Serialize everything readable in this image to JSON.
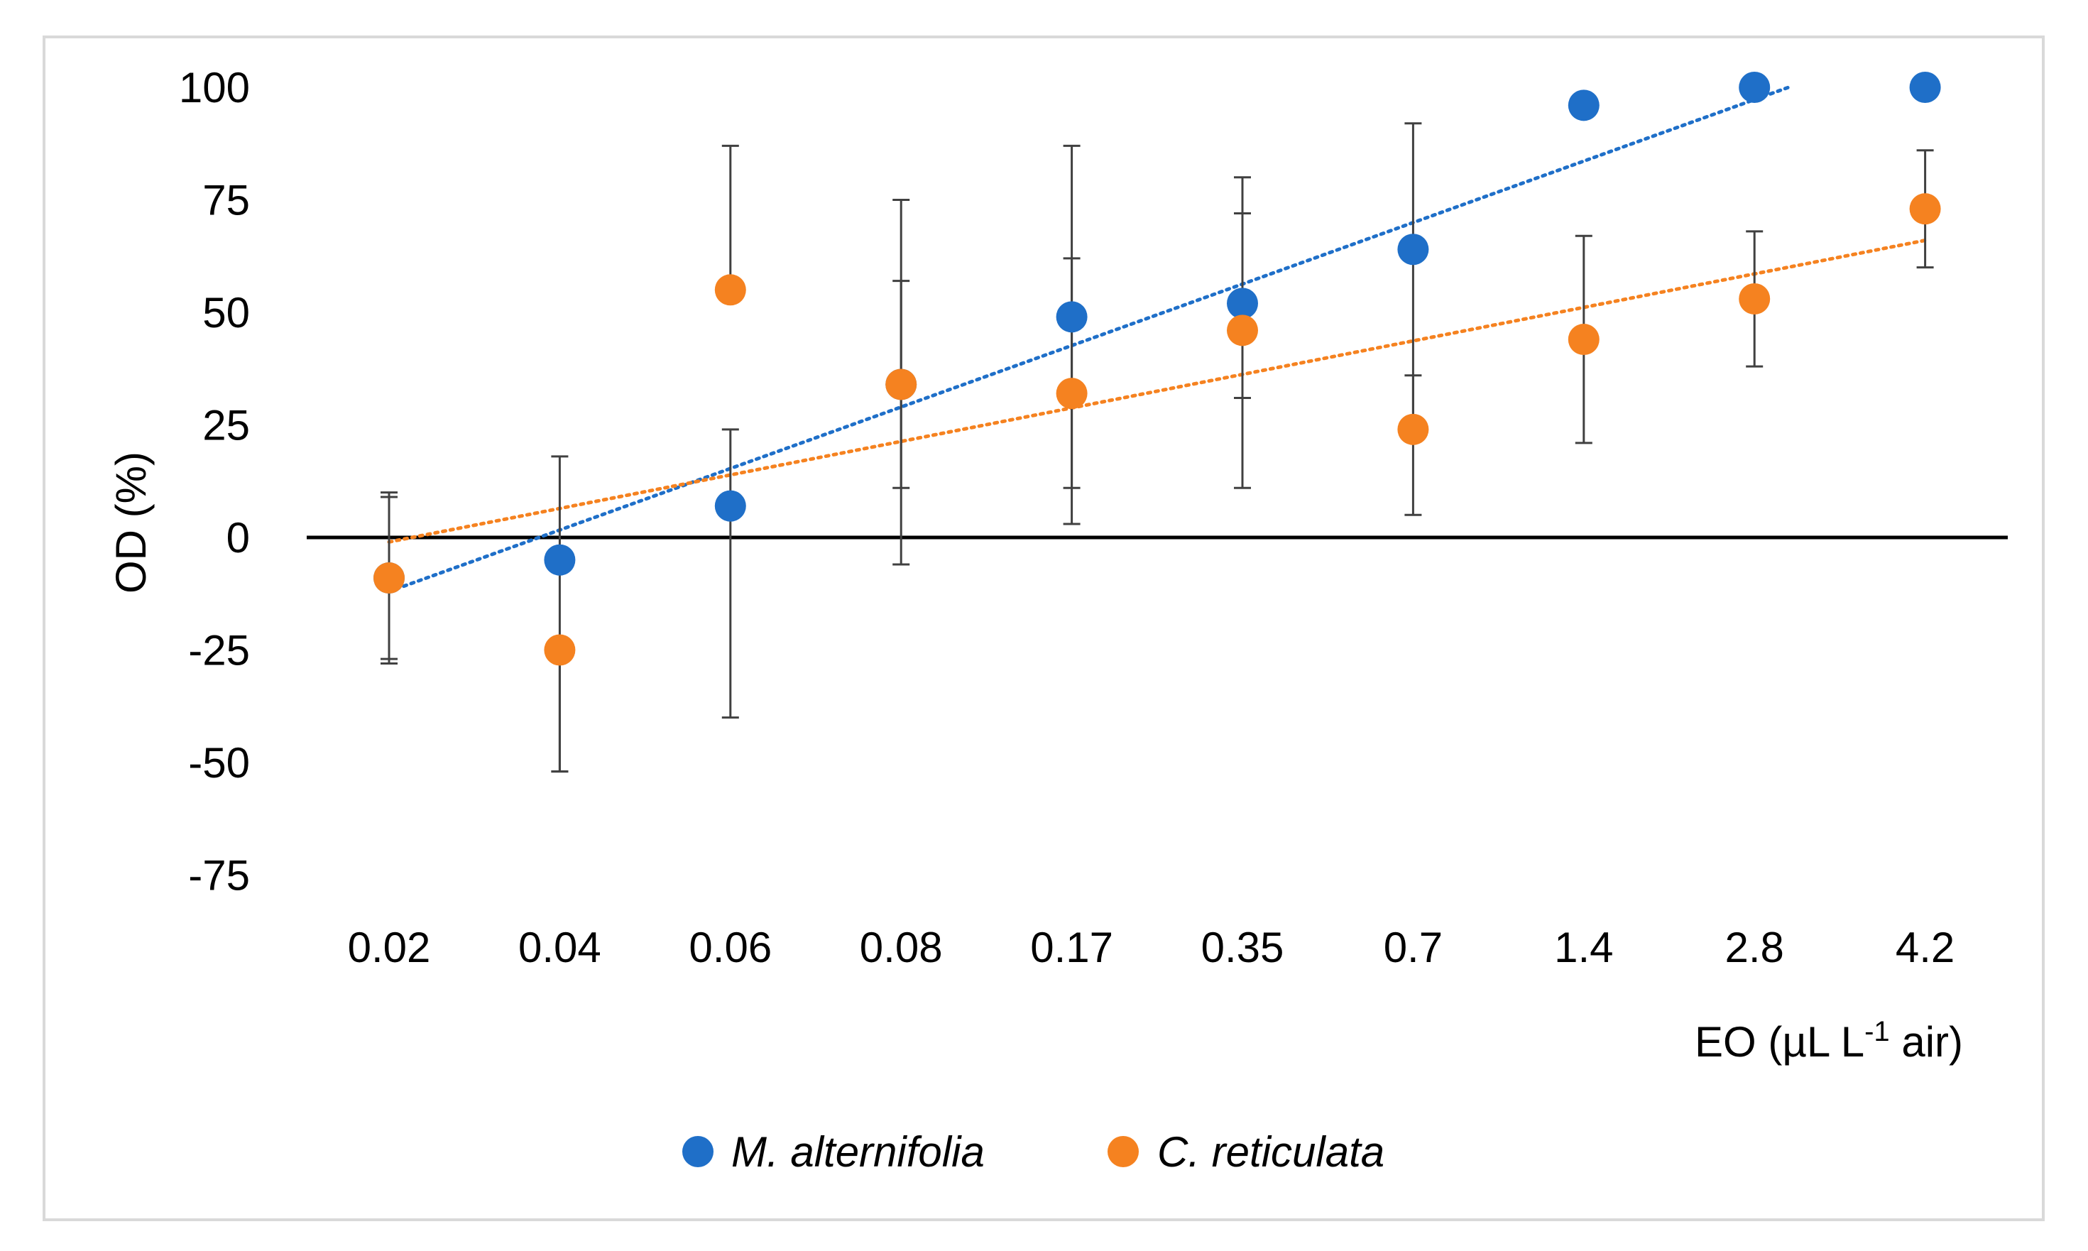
{
  "chart_data": {
    "type": "scatter",
    "title": "",
    "categories": [
      "0.02",
      "0.04",
      "0.06",
      "0.08",
      "0.17",
      "0.35",
      "0.7",
      "1.4",
      "2.8",
      "4.2"
    ],
    "xlabel": "EO (µL L",
    "xlabel_superscript": "-1",
    "xlabel_suffix": " air)",
    "ylabel": "OD (%)",
    "ylim": [
      -75,
      100
    ],
    "yticks": [
      100,
      75,
      50,
      25,
      0,
      -25,
      -50,
      -75
    ],
    "ytick_labels": [
      "100",
      "75",
      "50",
      "25",
      "0",
      "-25",
      "-50",
      "-75"
    ],
    "series": [
      {
        "name": "M. alternifolia",
        "color": "#1f6fc8",
        "values": [
          -9,
          -5,
          7,
          34,
          49,
          52,
          64,
          96,
          100,
          100
        ],
        "err_low": [
          -28,
          -52,
          -40,
          -6,
          3,
          11,
          5,
          null,
          null,
          null
        ],
        "err_high": [
          9,
          18,
          24,
          57,
          62,
          72,
          92,
          null,
          null,
          null
        ],
        "trendline": {
          "y_start": -12,
          "y_end": 100,
          "x_end_index": 8.2
        }
      },
      {
        "name": "C. reticulata",
        "color": "#f58220",
        "values": [
          -9,
          -25,
          55,
          34,
          32,
          46,
          24,
          44,
          53,
          73
        ],
        "err_low": [
          -27,
          -52,
          null,
          11,
          11,
          31,
          36,
          21,
          38,
          60
        ],
        "err_high": [
          10,
          null,
          87,
          75,
          87,
          80,
          null,
          67,
          68,
          86
        ],
        "trendline": {
          "y_start": -1,
          "y_end": 66,
          "x_end_index": 9
        }
      }
    ],
    "legend_position": "bottom",
    "grid": false
  }
}
